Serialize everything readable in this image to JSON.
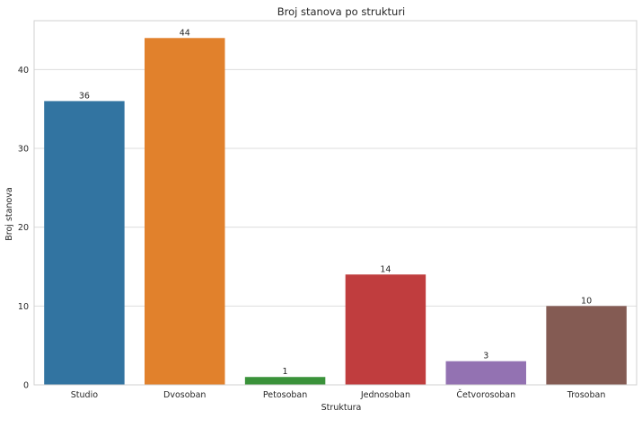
{
  "chart_data": {
    "type": "bar",
    "title": "Broj stanova po strukturi",
    "xlabel": "Struktura",
    "ylabel": "Broj stanova",
    "categories": [
      "Studio",
      "Dvosoban",
      "Petosoban",
      "Jednosoban",
      "Četvorosoban",
      "Trosoban"
    ],
    "values": [
      36,
      44,
      1,
      14,
      3,
      10
    ],
    "colors": [
      "#3274a1",
      "#e1812c",
      "#3a923a",
      "#c03d3e",
      "#9372b2",
      "#845b53"
    ],
    "ylim": [
      0,
      46.2
    ],
    "yticks": [
      0,
      10,
      20,
      30,
      40
    ],
    "grid": true,
    "legend": "none"
  }
}
